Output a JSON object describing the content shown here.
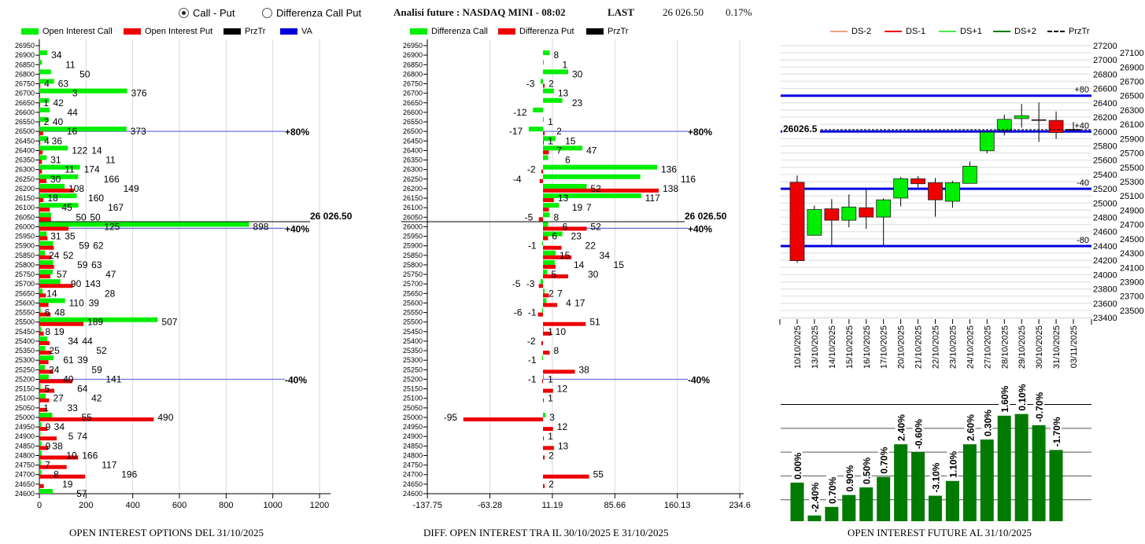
{
  "header": {
    "radio_options": [
      {
        "label": "Call - Put",
        "selected": true
      },
      {
        "label": "Differenza Call Put",
        "selected": false
      }
    ],
    "title": "Analisi future : NASDAQ MINI - 08:02",
    "last_label": "LAST",
    "last_value": "26 026.50",
    "change": "0.17%"
  },
  "colors": {
    "call": "#00ee00",
    "put": "#ee0000",
    "prztr": "#000000",
    "va": "#0000dd",
    "va_thin": "#6f6fe0",
    "candle_up": "#00ee00",
    "candle_down": "#ee0000",
    "oi_bar": "#007a00"
  },
  "strikes": [
    26950,
    26900,
    26850,
    26800,
    26750,
    26700,
    26650,
    26600,
    26550,
    26500,
    26450,
    26400,
    26350,
    26300,
    26250,
    26200,
    26150,
    26100,
    26050,
    26000,
    25950,
    25900,
    25850,
    25800,
    25750,
    25700,
    25650,
    25600,
    25550,
    25500,
    25450,
    25400,
    25350,
    25300,
    25250,
    25200,
    25150,
    25100,
    25050,
    25000,
    24950,
    24900,
    24850,
    24800,
    24750,
    24700,
    24650,
    24600
  ],
  "chart_data": [
    {
      "type": "bar",
      "orientation": "horizontal",
      "title": "OPEN INTEREST OPTIONS DEL 31/10/2025",
      "legend": [
        "Open Interest Call",
        "Open Interest Put",
        "PrzTr",
        "VA"
      ],
      "xlim": [
        0,
        1200
      ],
      "xticks": [
        "0",
        "200",
        "400",
        "600",
        "800",
        "1000",
        "1200"
      ],
      "series": [
        {
          "name": "Open Interest Call",
          "values": [
            null,
            34,
            11,
            50,
            63,
            376,
            42,
            44,
            40,
            373,
            36,
            122,
            31,
            174,
            166,
            108,
            160,
            167,
            50,
            898,
            31,
            59,
            24,
            59,
            57,
            90,
            14,
            110,
            6,
            507,
            8,
            34,
            25,
            61,
            24,
            40,
            5,
            27,
            1,
            55,
            9,
            5,
            9,
            10,
            7,
            8,
            null,
            57
          ]
        },
        {
          "name": "Open Interest Put",
          "values": [
            null,
            null,
            null,
            null,
            4,
            3,
            1,
            null,
            2,
            16,
            4,
            14,
            11,
            11,
            30,
            149,
            18,
            45,
            50,
            125,
            35,
            62,
            52,
            63,
            47,
            143,
            28,
            39,
            48,
            189,
            19,
            44,
            52,
            39,
            59,
            141,
            64,
            42,
            33,
            490,
            34,
            74,
            38,
            166,
            117,
            196,
            19,
            null
          ]
        }
      ],
      "prztr": {
        "value": 26026.5,
        "label": "26 026.50"
      },
      "va_lines": [
        {
          "strike": 26500,
          "label": "+80%"
        },
        {
          "strike": 26000,
          "label": "+40%"
        },
        {
          "strike": 25200,
          "label": "-40%"
        }
      ]
    },
    {
      "type": "bar",
      "orientation": "horizontal",
      "title": "DIFF. OPEN INTEREST TRA IL 30/10/2025 E 31/10/2025",
      "legend": [
        "Differenza Call",
        "Differenza Put",
        "PrzTr"
      ],
      "xlim": [
        -137.75,
        234.6
      ],
      "xticks": [
        "-137.75",
        "-63.28",
        "11.19",
        "85.66",
        "160.13",
        "234.6"
      ],
      "series": [
        {
          "name": "Differenza Call",
          "values": [
            null,
            8,
            1,
            30,
            -3,
            13,
            23,
            -12,
            1,
            -17,
            15,
            47,
            6,
            136,
            116,
            52,
            117,
            19,
            8,
            6,
            23,
            -1,
            15,
            14,
            5,
            -3,
            2,
            4,
            -1,
            null,
            1,
            null,
            null,
            -1,
            null,
            1,
            null,
            null,
            null,
            3,
            null,
            null,
            null,
            null,
            null,
            null,
            null,
            null
          ]
        },
        {
          "name": "Differenza Put",
          "values": [
            null,
            null,
            null,
            null,
            2,
            null,
            null,
            null,
            null,
            2,
            1,
            7,
            null,
            -2,
            -4,
            138,
            13,
            7,
            -5,
            52,
            6,
            22,
            34,
            15,
            30,
            -5,
            7,
            17,
            -6,
            51,
            10,
            -2,
            8,
            null,
            38,
            -1,
            12,
            1,
            null,
            -95,
            12,
            1,
            13,
            2,
            null,
            55,
            2,
            null
          ]
        }
      ],
      "prztr": {
        "value": 26026.5,
        "label": "26 026.50"
      },
      "va_lines": [
        {
          "strike": 26500,
          "label": "+80%"
        },
        {
          "strike": 26000,
          "label": "+40%"
        },
        {
          "strike": 25200,
          "label": "-40%"
        }
      ]
    },
    {
      "type": "candlestick",
      "legend": [
        "DS-2",
        "DS-1",
        "DS+1",
        "DS+2",
        "PrzTr"
      ],
      "legend_colors": [
        "#f0a080",
        "#ee0000",
        "#44ee44",
        "#007a00",
        "#000000"
      ],
      "ylim": [
        23400,
        27200
      ],
      "yticks_left": [
        "27200",
        "27000",
        "26800",
        "26600",
        "26400",
        "26200",
        "26000",
        "25800",
        "25600",
        "25400",
        "25200",
        "25000",
        "24800",
        "24600",
        "24400",
        "24200",
        "24000",
        "23800",
        "23600",
        "23400"
      ],
      "yticks_right": [
        "27100",
        "26900",
        "26700",
        "26500",
        "26300",
        "26100",
        "25900",
        "25700",
        "25500",
        "25300",
        "25100",
        "24900",
        "24700",
        "24500",
        "24300",
        "24100",
        "23900",
        "23700",
        "23500"
      ],
      "dates": [
        "10/10/2025",
        "13/10/2025",
        "14/10/2025",
        "15/10/2025",
        "16/10/2025",
        "17/10/2025",
        "20/10/2025",
        "21/10/2025",
        "22/10/2025",
        "23/10/2025",
        "24/10/2025",
        "27/10/2025",
        "28/10/2025",
        "29/10/2025",
        "30/10/2025",
        "31/10/2025",
        "03/11/2025"
      ],
      "ohlc": [
        [
          25290,
          25385,
          24165,
          24195
        ],
        [
          24550,
          24965,
          24550,
          24910
        ],
        [
          24920,
          25055,
          24415,
          24760
        ],
        [
          24760,
          25120,
          24660,
          24945
        ],
        [
          24935,
          25185,
          24640,
          24805
        ],
        [
          24805,
          25065,
          24415,
          25045
        ],
        [
          25070,
          25365,
          24955,
          25340
        ],
        [
          25340,
          25375,
          25220,
          25270
        ],
        [
          25285,
          25350,
          24810,
          25045
        ],
        [
          25025,
          25310,
          24935,
          25285
        ],
        [
          25275,
          25580,
          25275,
          25515
        ],
        [
          25730,
          25990,
          25695,
          25990
        ],
        [
          26015,
          26235,
          25945,
          26170
        ],
        [
          26180,
          26385,
          26055,
          26220
        ],
        [
          26165,
          26405,
          25855,
          26160
        ],
        [
          26155,
          26280,
          25895,
          25985
        ],
        [
          26030,
          26135,
          26005,
          26027
        ]
      ],
      "levels": [
        {
          "value": 26500,
          "label": "+80"
        },
        {
          "value": 26000,
          "label": "+40"
        },
        {
          "value": 25200,
          "label": "-40"
        },
        {
          "value": 24400,
          "label": "-80"
        }
      ],
      "prztr": {
        "value": 26026.5,
        "label": "26026.5"
      }
    },
    {
      "type": "bar",
      "title": "OPEN INTEREST FUTURE AL 31/10/2025",
      "relative_levels": [
        1.62,
        0.24,
        0.6,
        1.1,
        1.42,
        1.86,
        3.23,
        2.9,
        1.07,
        1.69,
        3.23,
        3.43,
        4.43,
        4.5,
        4.03,
        2.99
      ],
      "labels": [
        "0.00%",
        "-2.40%",
        "0.70%",
        "0.90%",
        "0.50%",
        "0.70%",
        "2.40%",
        "-0.60%",
        "-3.10%",
        "1.10%",
        "2.60%",
        "0.30%",
        "1.60%",
        "0.10%",
        "-0.70%",
        "-1.70%"
      ]
    }
  ]
}
